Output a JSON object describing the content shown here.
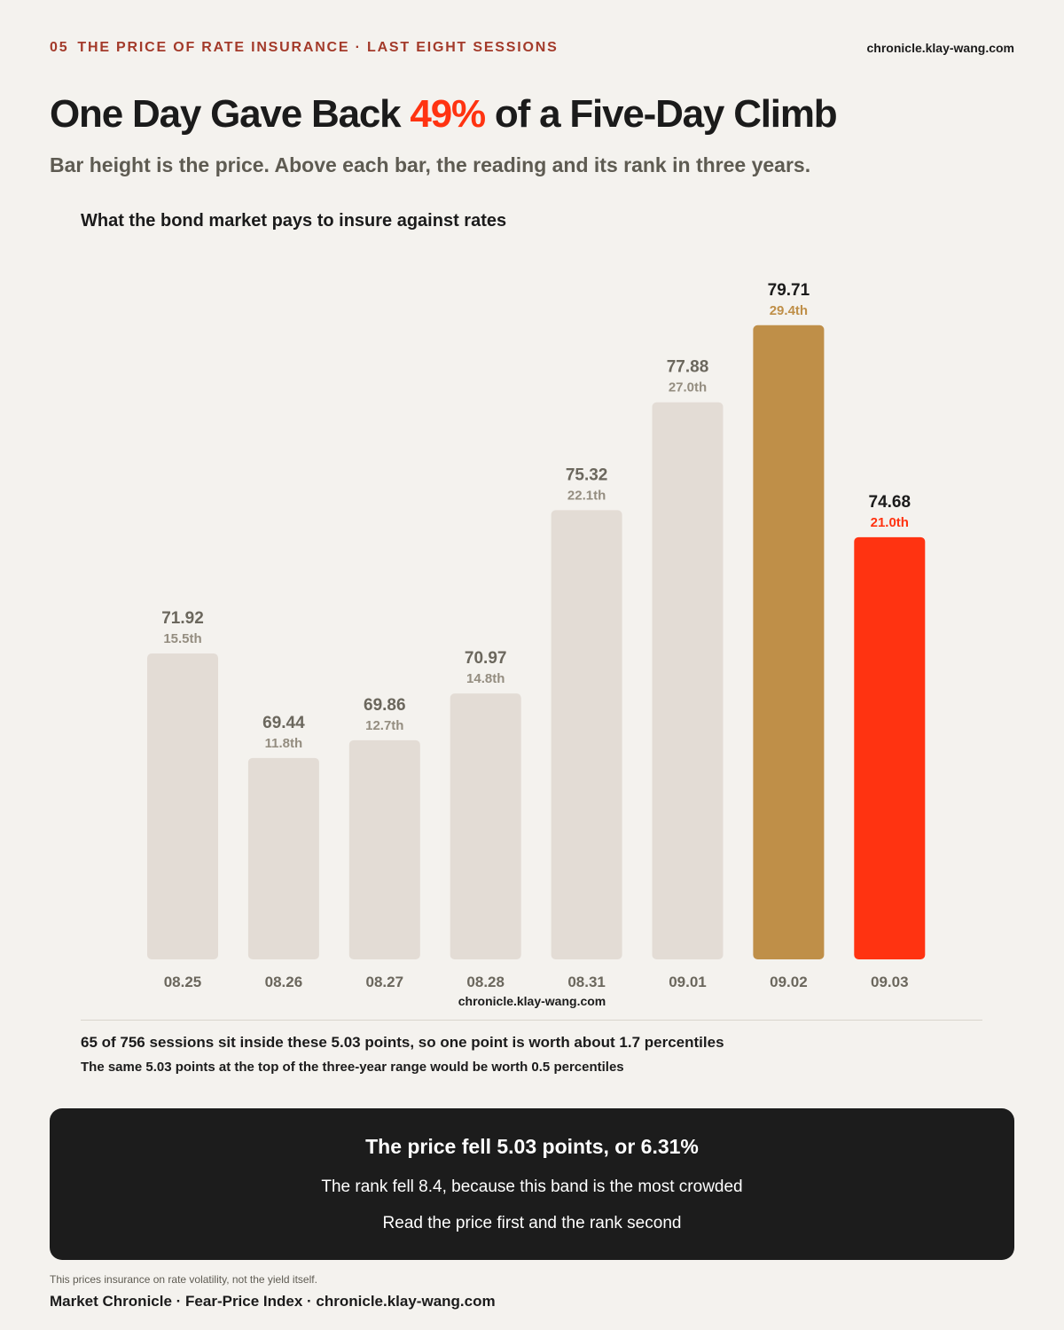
{
  "header": {
    "number": "05",
    "kicker": "THE PRICE OF RATE INSURANCE · LAST EIGHT SESSIONS",
    "site": "chronicle.klay-wang.com"
  },
  "headline": {
    "before": "One Day Gave Back",
    "highlight": "49%",
    "after": "of a Five-Day Climb"
  },
  "subtitle": "Bar height is the price. Above each bar, the reading and its rank in three years.",
  "chart_data": {
    "type": "bar",
    "title": "What the bond market pays to insure against rates",
    "categories": [
      "08.25",
      "08.26",
      "08.27",
      "08.28",
      "08.31",
      "09.01",
      "09.02",
      "09.03"
    ],
    "values": [
      71.92,
      69.44,
      69.86,
      70.97,
      75.32,
      77.88,
      79.71,
      74.68
    ],
    "ranks": [
      "15.5th",
      "11.8th",
      "12.7th",
      "14.8th",
      "22.1th",
      "27.0th",
      "29.4th",
      "21.0th"
    ],
    "colors": [
      "#e3dcd5",
      "#e3dcd5",
      "#e3dcd5",
      "#e3dcd5",
      "#e3dcd5",
      "#e3dcd5",
      "#bf8f48",
      "#ff3311"
    ],
    "base_color": "#e3dcd5",
    "ylim": [
      64.66,
      80
    ],
    "watermark": "chronicle.klay-wang.com"
  },
  "notes": [
    "65 of 756 sessions sit inside these 5.03 points, so one point is worth about 1.7 percentiles",
    "The same 5.03 points at the top of the three-year range would be worth 0.5 percentiles"
  ],
  "callout": {
    "title": "The price fell 5.03 points, or 6.31%",
    "lines": [
      "The rank fell 8.4, because this band is the most crowded",
      "Read the price first and the rank second"
    ]
  },
  "footnote": "This prices insurance on rate volatility, not the yield itself.",
  "footer": "Market Chronicle · Fear-Price Index · chronicle.klay-wang.com"
}
